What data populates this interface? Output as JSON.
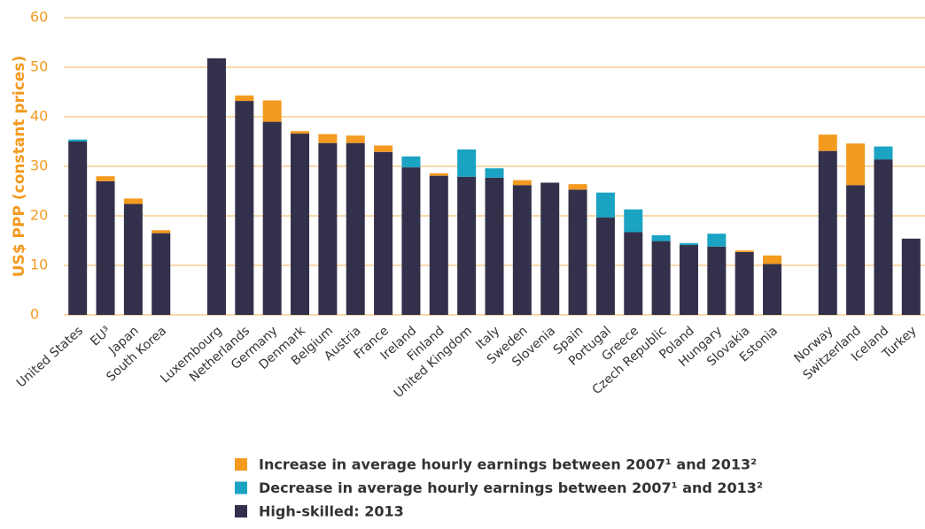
{
  "chart_data": {
    "type": "stacked_bar",
    "ylabel": "US$ PPP (constant prices)",
    "categories": [
      "United States",
      "EU³",
      "Japan",
      "South Korea",
      null,
      "Luxembourg",
      "Netherlands",
      "Germany",
      "Denmark",
      "Belgium",
      "Austria",
      "France",
      "Ireland",
      "Finland",
      "United Kingdom",
      "Italy",
      "Sweden",
      "Slovenia",
      "Spain",
      "Portugal",
      "Greece",
      "Czech Republic",
      "Poland",
      "Hungary",
      "Slovakia",
      "Estonia",
      null,
      "Norway",
      "Switzerland",
      "Iceland",
      "Turkey"
    ],
    "series": [
      {
        "name": "Increase in average hourly earnings between 2007¹ and 2013²",
        "color": "#f39a1f",
        "values": [
          0,
          1.0,
          1.1,
          0.6,
          null,
          0,
          1.1,
          4.3,
          0.5,
          1.8,
          1.5,
          1.3,
          0,
          0.5,
          0,
          0,
          1.0,
          0,
          1.1,
          0,
          0,
          0,
          0,
          0,
          0.3,
          1.7,
          null,
          3.3,
          8.4,
          0,
          0
        ]
      },
      {
        "name": "Decrease in average hourly earnings between 2007¹ and 2013²",
        "color": "#1aa3c3",
        "values": [
          0.4,
          0,
          0,
          0,
          null,
          0,
          0,
          0,
          0,
          0,
          0,
          0,
          2.2,
          0,
          5.5,
          1.9,
          0,
          0,
          0,
          5.0,
          4.6,
          1.2,
          0.4,
          2.6,
          0,
          0,
          null,
          0,
          0,
          2.6,
          0
        ]
      },
      {
        "name": "High-skilled: 2013",
        "color": "#33304b",
        "values": [
          35.0,
          27.0,
          22.4,
          16.5,
          null,
          51.8,
          43.2,
          39.0,
          36.6,
          34.7,
          34.7,
          32.9,
          29.8,
          28.1,
          27.9,
          27.7,
          26.2,
          26.7,
          25.3,
          19.7,
          16.7,
          14.9,
          14.1,
          13.8,
          12.7,
          10.3,
          null,
          33.1,
          26.2,
          31.4,
          15.4
        ]
      }
    ],
    "ylim": [
      0,
      60
    ],
    "yticks": [
      0,
      10,
      20,
      30,
      40,
      50,
      60
    ],
    "grid": true
  }
}
